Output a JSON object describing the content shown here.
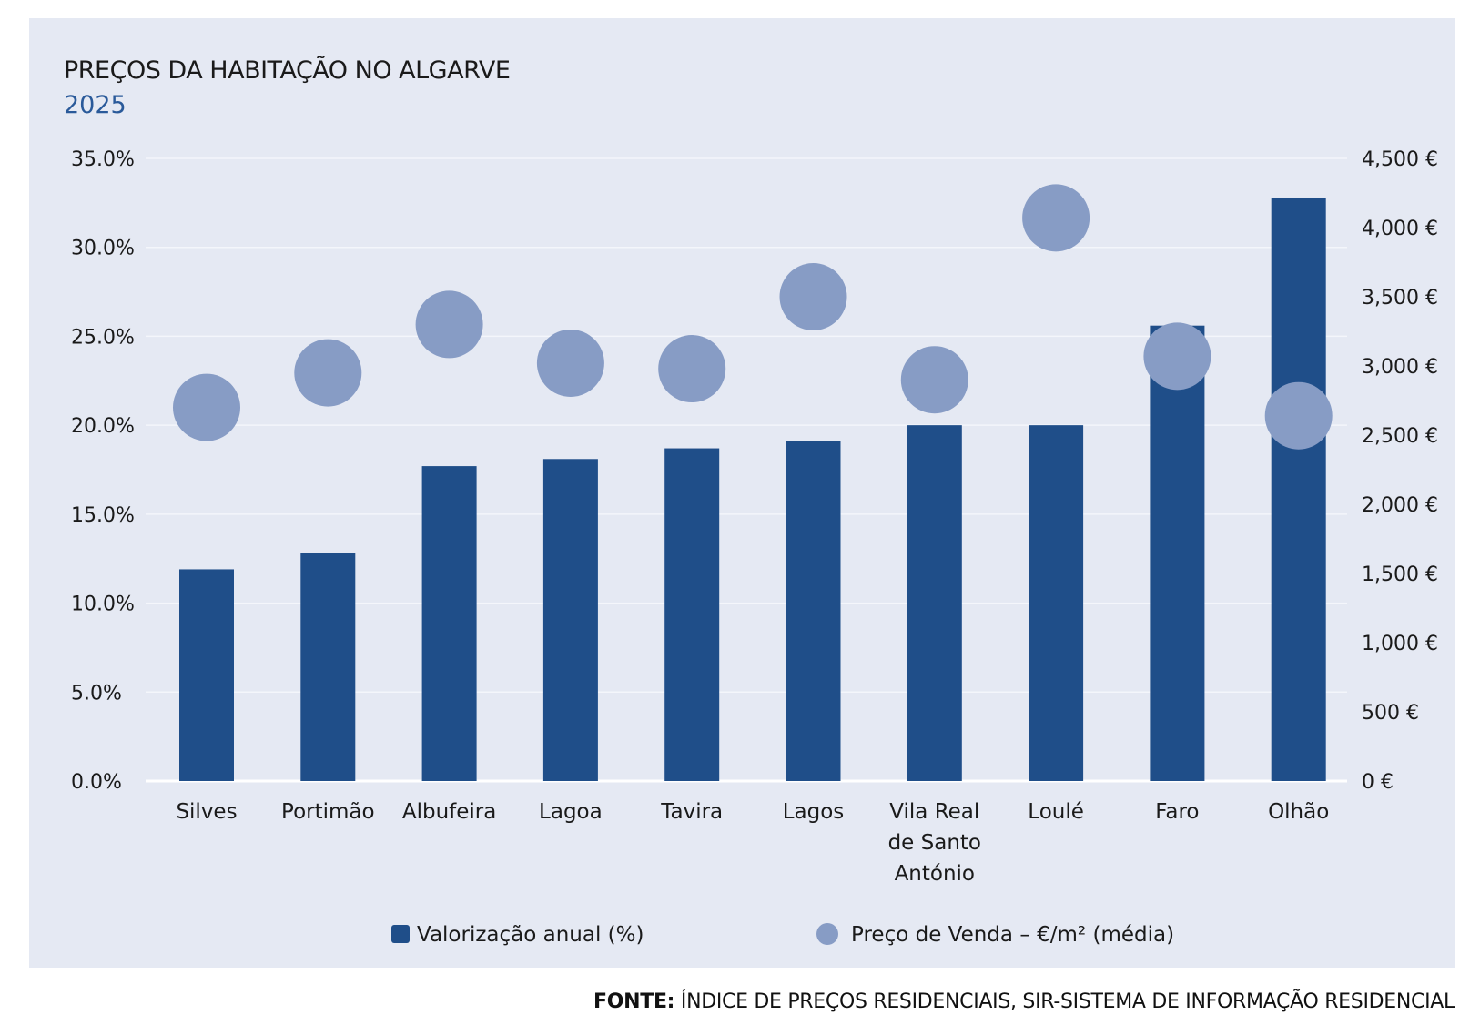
{
  "chart_data": {
    "type": "bar",
    "title": "PREÇOS DA HABITAÇÃO NO ALGARVE",
    "subtitle": "2025",
    "categories": [
      "Silves",
      "Portimão",
      "Albufeira",
      "Lagoa",
      "Tavira",
      "Lagos",
      "Vila Real de Santo António",
      "Loulé",
      "Faro",
      "Olhão"
    ],
    "category_lines": [
      [
        "Silves"
      ],
      [
        "Portimão"
      ],
      [
        "Albufeira"
      ],
      [
        "Lagoa"
      ],
      [
        "Tavira"
      ],
      [
        "Lagos"
      ],
      [
        "Vila Real",
        "de Santo",
        "António"
      ],
      [
        "Loulé"
      ],
      [
        "Faro"
      ],
      [
        "Olhão"
      ]
    ],
    "series": [
      {
        "name": "Valorização anual (%)",
        "type": "bar",
        "axis": "left",
        "color": "#1f4e89",
        "values": [
          11.9,
          12.8,
          17.7,
          18.1,
          18.7,
          19.1,
          20.0,
          20.0,
          25.6,
          32.8
        ]
      },
      {
        "name": "Preço de Venda – €/m² (média)",
        "type": "scatter",
        "axis": "right",
        "color": "#879cc5",
        "values": [
          2700,
          2950,
          3300,
          3020,
          2980,
          3500,
          2900,
          4070,
          3070,
          2640
        ]
      }
    ],
    "y_left": {
      "range": [
        0,
        35
      ],
      "ticks": [
        "0.0%",
        "5.0%",
        "10.0%",
        "15.0%",
        "20.0%",
        "25.0%",
        "30.0%",
        "35.0%"
      ]
    },
    "y_right": {
      "range": [
        0,
        4500
      ],
      "ticks": [
        "0 €",
        "500 €",
        "1,000 €",
        "1,500 €",
        "2,000 €",
        "2,500 €",
        "3,000 €",
        "3,500 €",
        "4,000 €",
        "4,500 €"
      ]
    },
    "grid": true,
    "legend": "bottom",
    "background": "#e5e9f3"
  },
  "source": {
    "label": "FONTE:",
    "text": " ÍNDICE DE PREÇOS RESIDENCIAIS, SIR-SISTEMA DE INFORMAÇÃO RESIDENCIAL"
  }
}
